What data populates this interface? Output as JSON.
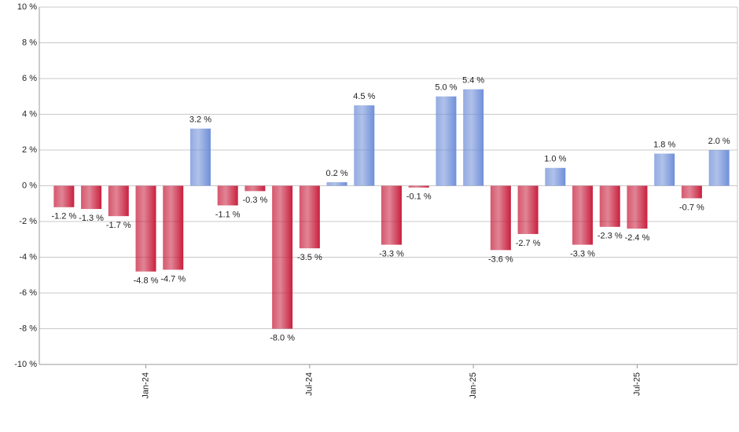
{
  "chart_data": {
    "type": "bar",
    "categories": [
      null,
      null,
      null,
      "Jan-24",
      null,
      null,
      null,
      null,
      null,
      "Jul-24",
      null,
      null,
      null,
      null,
      null,
      "Jan-25",
      null,
      null,
      null,
      null,
      null,
      "Jul-25",
      null,
      null,
      null
    ],
    "values": [
      -1.2,
      -1.3,
      -1.7,
      -4.8,
      -4.7,
      3.2,
      -1.1,
      -0.3,
      -8.0,
      -3.5,
      0.2,
      4.5,
      -3.3,
      -0.1,
      5.0,
      5.4,
      -3.6,
      -2.7,
      1.0,
      -3.3,
      -2.3,
      -2.4,
      1.8,
      -0.7,
      2.0
    ],
    "value_labels": [
      "-1.2 %",
      "-1.3 %",
      "-1.7 %",
      "-4.8 %",
      "-4.7 %",
      "3.2 %",
      "-1.1 %",
      "-0.3 %",
      "-8.0 %",
      "-3.5 %",
      "0.2 %",
      "4.5 %",
      "-3.3 %",
      "-0.1 %",
      "5.0 %",
      "5.4 %",
      "-3.6 %",
      "-2.7 %",
      "1.0 %",
      "-3.3 %",
      "-2.3 %",
      "-2.4 %",
      "1.8 %",
      "-0.7 %",
      "2.0 %"
    ],
    "positive_color": "#6f8fd8",
    "negative_color": "#c8203e",
    "ylim": [
      -10,
      10
    ],
    "yticks": [
      {
        "value": -10,
        "label": "-10 %"
      },
      {
        "value": -8,
        "label": "-8 %"
      },
      {
        "value": -6,
        "label": "-6 %"
      },
      {
        "value": -4,
        "label": "-4 %"
      },
      {
        "value": -2,
        "label": "-2 %"
      },
      {
        "value": 0,
        "label": "0 %"
      },
      {
        "value": 2,
        "label": "2 %"
      },
      {
        "value": 4,
        "label": "4 %"
      },
      {
        "value": 6,
        "label": "6 %"
      },
      {
        "value": 8,
        "label": "8 %"
      },
      {
        "value": 10,
        "label": "10 %"
      }
    ],
    "grid": true
  }
}
